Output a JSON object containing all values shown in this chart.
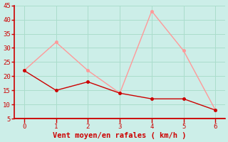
{
  "xlabel": "Vent moyen/en rafales ( km/h )",
  "x": [
    0,
    1,
    2,
    3,
    4,
    5,
    6
  ],
  "y_moyen": [
    22,
    15,
    18,
    14,
    12,
    12,
    8
  ],
  "y_rafales": [
    22,
    32,
    22,
    14,
    43,
    29,
    8
  ],
  "color_moyen": "#cc0000",
  "color_rafales": "#ff9999",
  "bg_color": "#cceee8",
  "grid_color": "#aaddcc",
  "ylim": [
    5,
    45
  ],
  "xlim": [
    -0.3,
    6.3
  ],
  "yticks": [
    5,
    10,
    15,
    20,
    25,
    30,
    35,
    40,
    45
  ],
  "xticks": [
    0,
    1,
    2,
    3,
    4,
    5,
    6
  ],
  "axis_color": "#cc0000",
  "label_color": "#cc0000",
  "tick_label_size": 6.5,
  "xlabel_size": 7.5
}
